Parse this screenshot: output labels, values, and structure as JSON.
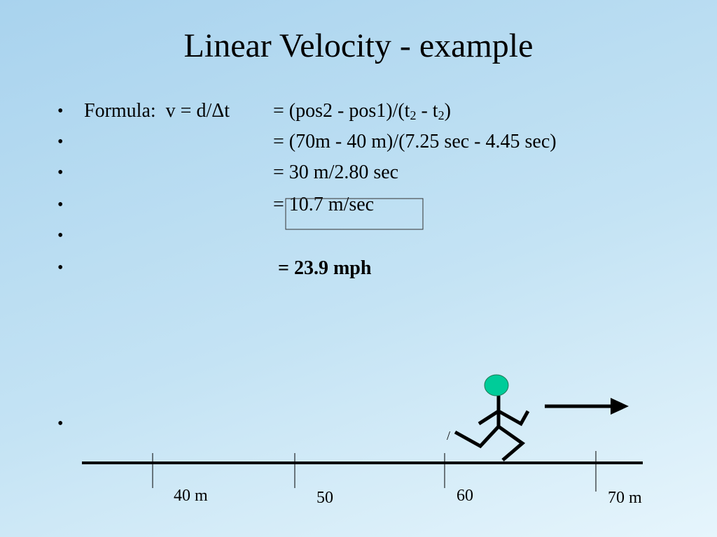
{
  "title": "Linear Velocity - example",
  "bullet": "•",
  "formula": {
    "left": "Formula:  v = d/Δt",
    "right": [
      "= (pos2 - pos1)/(t",
      "2",
      " - t",
      "2",
      ")"
    ]
  },
  "steps": [
    "= (70m - 40 m)/(7.25 sec - 4.45 sec)",
    "= 30 m/2.80 sec",
    "= 10.7 m/sec"
  ],
  "result": "= 23.9 mph",
  "stray_mark": "/",
  "scale_labels": [
    "40 m",
    "50",
    "60",
    "70 m"
  ]
}
